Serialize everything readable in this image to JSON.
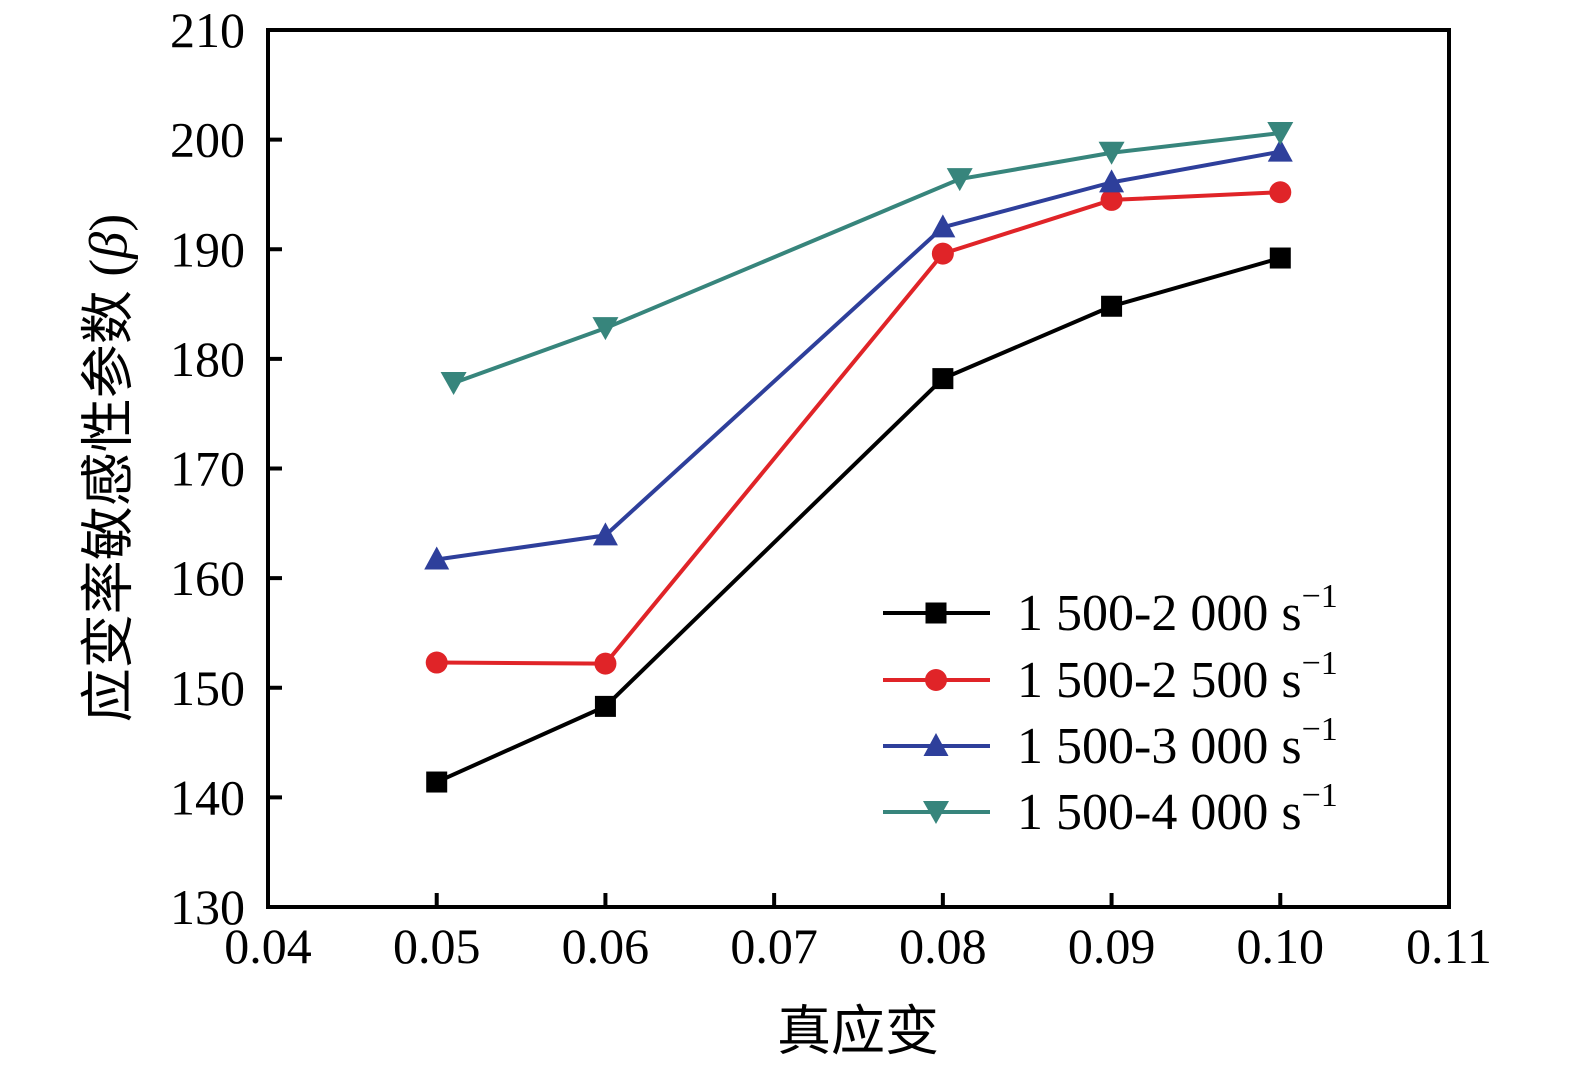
{
  "chart_data": {
    "type": "line",
    "title": "",
    "xlabel": "真应变",
    "ylabel": "应变率敏感性参数 (β)",
    "ylabel_parts": {
      "pre": "应变率敏感性参数 (",
      "beta": "β",
      "post": ")"
    },
    "xlim": [
      0.04,
      0.11
    ],
    "ylim": [
      130,
      210
    ],
    "xticks": {
      "values": [
        0.04,
        0.05,
        0.06,
        0.07,
        0.08,
        0.09,
        0.1,
        0.11
      ],
      "labels": [
        "0.04",
        "0.05",
        "0.06",
        "0.07",
        "0.08",
        "0.09",
        "0.10",
        "0.11"
      ]
    },
    "yticks": {
      "values": [
        130,
        140,
        150,
        160,
        170,
        180,
        190,
        200,
        210
      ],
      "labels": [
        "130",
        "140",
        "150",
        "160",
        "170",
        "180",
        "190",
        "200",
        "210"
      ]
    },
    "grid": false,
    "legend_position": "inside lower right",
    "series": [
      {
        "name": "1 500-2 000 s⁻¹",
        "label_base": "1 500-2 000 s",
        "label_sup": "−1",
        "color": "#000000",
        "marker": "square",
        "x": [
          0.05,
          0.06,
          0.08,
          0.09,
          0.1
        ],
        "y": [
          141.4,
          148.3,
          178.2,
          184.8,
          189.2
        ]
      },
      {
        "name": "1 500-2 500 s⁻¹",
        "label_base": "1 500-2 500 s",
        "label_sup": "−1",
        "color": "#e02428",
        "marker": "circle",
        "x": [
          0.05,
          0.06,
          0.08,
          0.09,
          0.1
        ],
        "y": [
          152.3,
          152.2,
          189.6,
          194.5,
          195.2
        ]
      },
      {
        "name": "1 500-3 000 s⁻¹",
        "label_base": "1 500-3 000 s",
        "label_sup": "−1",
        "color": "#2e3f9b",
        "marker": "triangle-up",
        "x": [
          0.05,
          0.06,
          0.08,
          0.09,
          0.1
        ],
        "y": [
          161.7,
          163.9,
          192.0,
          196.1,
          198.9
        ]
      },
      {
        "name": "1 500-4 000 s⁻¹",
        "label_base": "1 500-4 000 s",
        "label_sup": "−1",
        "color": "#37857c",
        "marker": "triangle-down",
        "x": [
          0.051,
          0.06,
          0.081,
          0.09,
          0.1
        ],
        "y": [
          177.8,
          182.8,
          196.4,
          198.8,
          200.6
        ]
      }
    ]
  }
}
